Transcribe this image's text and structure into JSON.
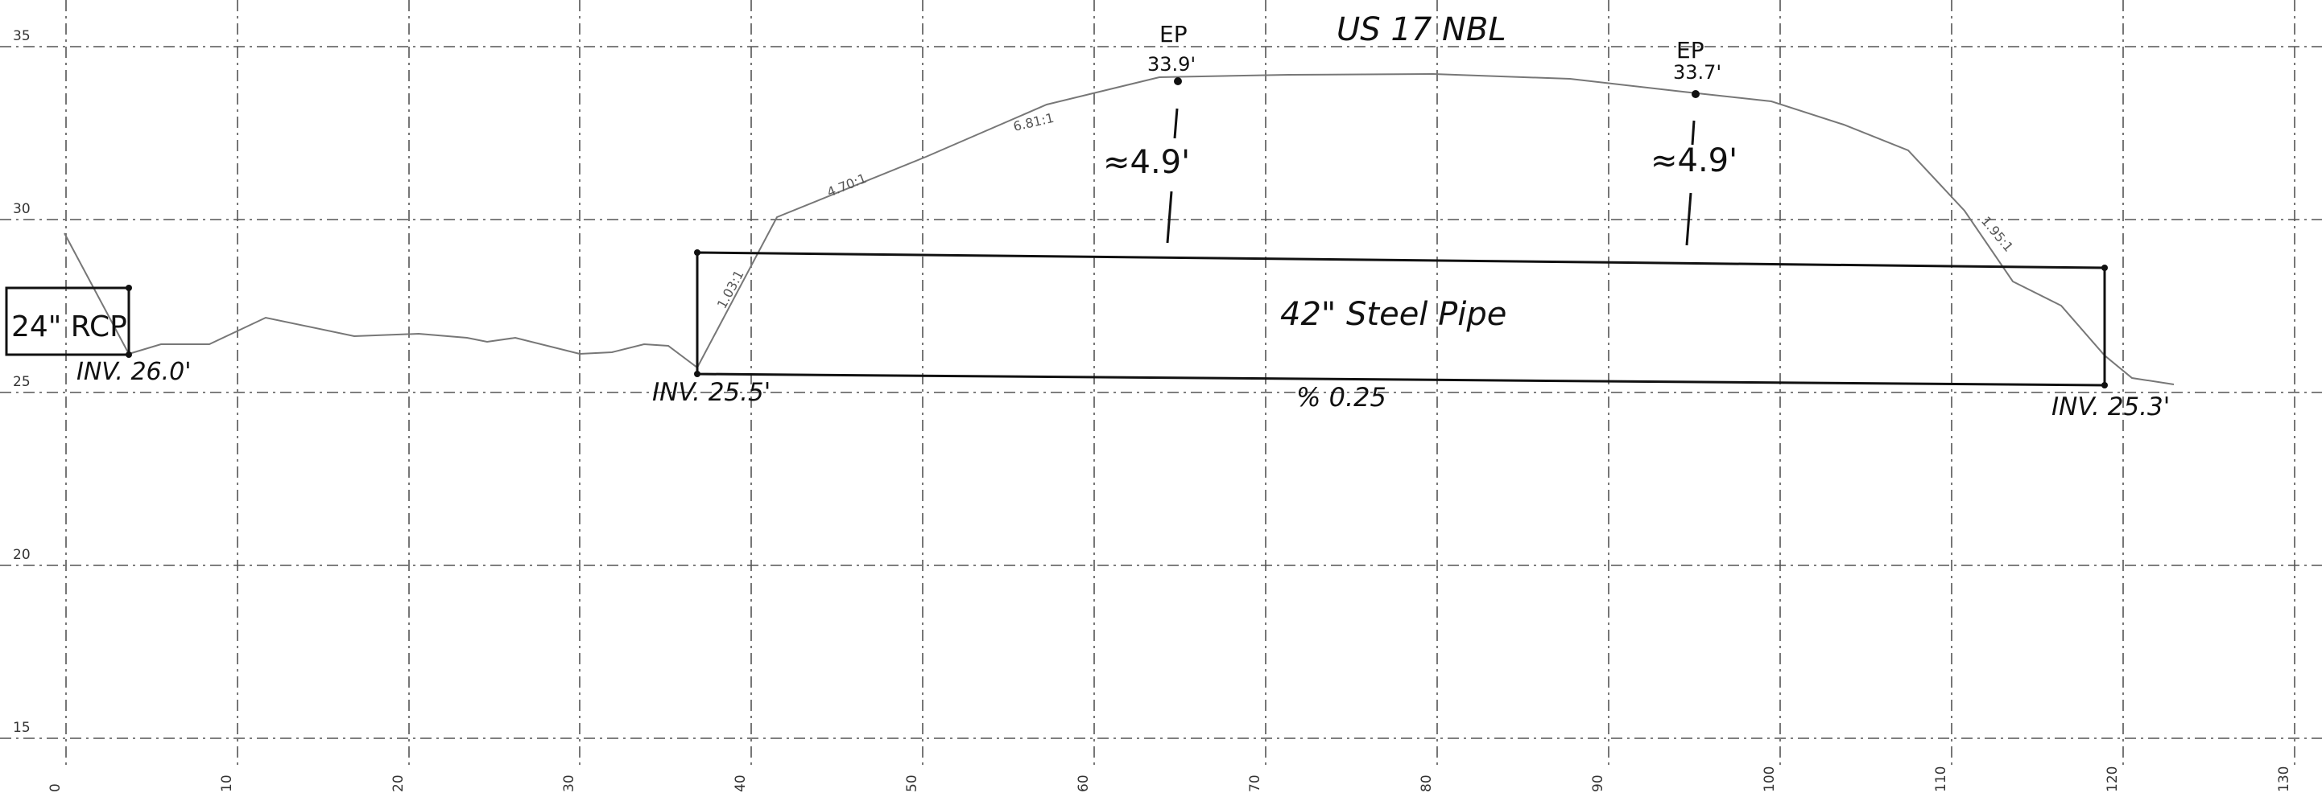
{
  "sheet": {
    "title": "US 17 NBL",
    "y_ticks": [
      "35",
      "30",
      "25",
      "20",
      "15"
    ],
    "x_ticks": [
      "0",
      "10",
      "20",
      "30",
      "40",
      "50",
      "60",
      "70",
      "80",
      "90",
      "100",
      "110",
      "120",
      "130"
    ]
  },
  "culvert_left": {
    "label": "24\" RCP",
    "invert": "INV. 26.0'"
  },
  "pipe": {
    "label": "42\" Steel Pipe",
    "inlet_invert": "INV. 25.5'",
    "outlet_invert": "INV. 25.3'",
    "slope": "% 0.25"
  },
  "edges_of_pavement": [
    {
      "label": "EP",
      "elevation": "33.9'",
      "cover": "≈4.9'"
    },
    {
      "label": "EP",
      "elevation": "33.7'",
      "cover": "≈4.9'"
    }
  ],
  "slope_labels": [
    "1.03:1",
    "4.70:1",
    "6.81:1",
    "1.95:1"
  ]
}
